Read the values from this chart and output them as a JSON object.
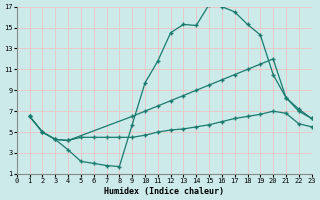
{
  "bg_color": "#cceaea",
  "grid_color": "#e8c8c8",
  "line_color": "#1a7a6e",
  "xlabel": "Humidex (Indice chaleur)",
  "xlim": [
    0,
    23
  ],
  "ylim": [
    1,
    17
  ],
  "xticks": [
    0,
    1,
    2,
    3,
    4,
    5,
    6,
    7,
    8,
    9,
    10,
    11,
    12,
    13,
    14,
    15,
    16,
    17,
    18,
    19,
    20,
    21,
    22,
    23
  ],
  "yticks": [
    1,
    3,
    5,
    7,
    9,
    11,
    13,
    15,
    17
  ],
  "curve1_x": [
    1,
    2,
    3,
    4,
    5,
    6,
    7,
    8,
    9,
    10,
    11,
    12,
    13,
    14,
    15,
    16,
    17,
    18,
    19,
    20,
    21,
    22,
    23
  ],
  "curve1_y": [
    6.5,
    5.0,
    4.3,
    3.3,
    2.2,
    2.0,
    1.8,
    1.7,
    5.7,
    9.7,
    11.8,
    14.5,
    15.3,
    15.2,
    17.2,
    17.0,
    16.5,
    15.3,
    14.3,
    10.5,
    8.3,
    7.0,
    6.3
  ],
  "curve2_x": [
    1,
    2,
    3,
    4,
    9,
    10,
    11,
    12,
    13,
    14,
    15,
    16,
    17,
    18,
    19,
    20,
    21,
    22,
    23
  ],
  "curve2_y": [
    6.5,
    5.0,
    4.3,
    4.2,
    6.5,
    7.0,
    7.5,
    8.0,
    8.5,
    9.0,
    9.5,
    10.0,
    10.5,
    11.0,
    11.5,
    12.0,
    8.3,
    7.2,
    6.3
  ],
  "curve3_x": [
    1,
    2,
    3,
    4,
    5,
    6,
    7,
    8,
    9,
    10,
    11,
    12,
    13,
    14,
    15,
    16,
    17,
    18,
    19,
    20,
    21,
    22,
    23
  ],
  "curve3_y": [
    6.5,
    5.0,
    4.3,
    4.2,
    4.5,
    4.5,
    4.5,
    4.5,
    4.5,
    4.7,
    5.0,
    5.2,
    5.3,
    5.5,
    5.7,
    6.0,
    6.3,
    6.5,
    6.7,
    7.0,
    6.8,
    5.8,
    5.5
  ]
}
